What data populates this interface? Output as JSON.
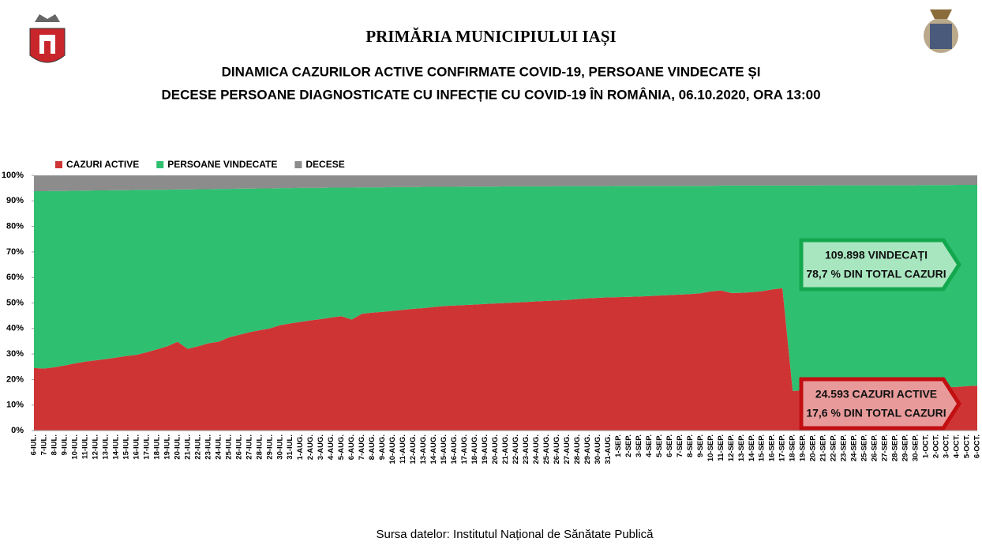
{
  "header": "PRIMĂRIA MUNICIPIULUI IAȘI",
  "source": "Sursa datelor: Institutul Național de Sănătate Publică",
  "chart_data": {
    "type": "stacked_area",
    "title_lines": [
      "DINAMICA CAZURILOR ACTIVE CONFIRMATE COVID-19, PERSOANE VINDECATE ȘI",
      "DECESE PERSOANE DIAGNOSTICATE CU INFECȚIE CU COVID-19 ÎN ROMÂNIA, 06.10.2020, ORA 13:00"
    ],
    "categories": [
      "6-IUL.",
      "7-IUL.",
      "8-IUL.",
      "9-IUL.",
      "10-IUL.",
      "11-IUL.",
      "12-IUL.",
      "13-IUL.",
      "14-IUL.",
      "15-IUL.",
      "16-IUL.",
      "17-IUL.",
      "18-IUL.",
      "19-IUL.",
      "20-IUL.",
      "21-IUL.",
      "22-IUL.",
      "23-IUL.",
      "24-IUL.",
      "25-IUL.",
      "26-IUL.",
      "27-IUL.",
      "28-IUL.",
      "29-IUL.",
      "30-IUL.",
      "31-IUL.",
      "1-AUG.",
      "2-AUG.",
      "3-AUG.",
      "4-AUG.",
      "5-AUG.",
      "6-AUG.",
      "7-AUG.",
      "8-AUG.",
      "9-AUG.",
      "10-AUG.",
      "11-AUG.",
      "12-AUG.",
      "13-AUG.",
      "14-AUG.",
      "15-AUG.",
      "16-AUG.",
      "17-AUG.",
      "18-AUG.",
      "19-AUG.",
      "20-AUG.",
      "21-AUG.",
      "22-AUG.",
      "23-AUG.",
      "24-AUG.",
      "25-AUG.",
      "26-AUG.",
      "27-AUG.",
      "28-AUG.",
      "29-AUG.",
      "30-AUG.",
      "31-AUG.",
      "1-SEP.",
      "2-SEP.",
      "3-SEP.",
      "4-SEP.",
      "5-SEP.",
      "6-SEP.",
      "7-SEP.",
      "8-SEP.",
      "9-SEP.",
      "10-SEP.",
      "11-SEP.",
      "12-SEP.",
      "13-SEP.",
      "14-SEP.",
      "15-SEP.",
      "16-SEP.",
      "17-SEP.",
      "18-SEP.",
      "19-SEP.",
      "20-SEP.",
      "21-SEP.",
      "22-SEP.",
      "23-SEP.",
      "24-SEP.",
      "25-SEP.",
      "26-SEP.",
      "27-SEP.",
      "28-SEP.",
      "29-SEP.",
      "30-SEP.",
      "1-OCT.",
      "2-OCT.",
      "3-OCT.",
      "4-OCT.",
      "5-OCT.",
      "6-OCT."
    ],
    "series": [
      {
        "name": "CAZURI ACTIVE",
        "color": "#cf3434",
        "values": [
          24.5,
          24.3,
          24.8,
          25.5,
          26.3,
          27.0,
          27.5,
          28.0,
          28.6,
          29.2,
          29.7,
          30.7,
          31.8,
          33.0,
          34.8,
          32.0,
          33.0,
          34.2,
          34.8,
          36.5,
          37.5,
          38.5,
          39.3,
          40.0,
          41.3,
          42.0,
          42.6,
          43.2,
          43.7,
          44.3,
          44.8,
          43.5,
          45.8,
          46.2,
          46.5,
          46.9,
          47.3,
          47.7,
          48.0,
          48.4,
          48.8,
          49.0,
          49.2,
          49.4,
          49.6,
          49.8,
          50.0,
          50.2,
          50.4,
          50.6,
          50.8,
          51.0,
          51.2,
          51.5,
          51.8,
          52.0,
          52.2,
          52.3,
          52.4,
          52.5,
          52.7,
          52.9,
          53.1,
          53.3,
          53.5,
          53.8,
          54.5,
          54.9,
          53.9,
          54.0,
          54.2,
          54.6,
          55.3,
          55.8,
          15.5,
          15.7,
          15.8,
          15.9,
          16.0,
          16.1,
          16.2,
          16.3,
          16.3,
          16.4,
          16.5,
          16.5,
          16.6,
          16.7,
          16.8,
          16.9,
          17.1,
          17.4,
          17.6
        ]
      },
      {
        "name": "PERSOANE VINDECATE",
        "color": "#2fbf71",
        "values": [
          69.3,
          69.5,
          69.1,
          68.4,
          67.7,
          67.0,
          66.6,
          66.1,
          65.6,
          65.0,
          64.6,
          63.6,
          62.6,
          61.4,
          59.7,
          62.5,
          61.6,
          60.4,
          59.9,
          58.2,
          57.3,
          56.3,
          55.6,
          54.9,
          53.7,
          53.0,
          52.5,
          51.9,
          51.4,
          50.9,
          50.4,
          51.7,
          49.5,
          49.1,
          48.8,
          48.5,
          48.1,
          47.7,
          47.5,
          47.1,
          46.7,
          46.5,
          46.4,
          46.2,
          46.0,
          45.8,
          45.7,
          45.5,
          45.3,
          45.1,
          44.9,
          44.8,
          44.6,
          44.3,
          44.0,
          43.8,
          43.6,
          43.6,
          43.5,
          43.4,
          43.2,
          43.0,
          42.8,
          42.6,
          42.4,
          42.1,
          41.4,
          41.1,
          42.1,
          42.0,
          41.8,
          41.4,
          40.7,
          40.2,
          80.5,
          80.3,
          80.2,
          80.2,
          80.1,
          80.0,
          79.9,
          79.8,
          79.8,
          79.7,
          79.6,
          79.6,
          79.5,
          79.5,
          79.4,
          79.3,
          79.2,
          78.9,
          78.7
        ]
      },
      {
        "name": "DECESE",
        "color": "#8c8c8c",
        "values": [
          6.2,
          6.2,
          6.1,
          6.1,
          6.0,
          6.0,
          5.9,
          5.9,
          5.8,
          5.8,
          5.7,
          5.7,
          5.6,
          5.6,
          5.5,
          5.5,
          5.4,
          5.4,
          5.3,
          5.3,
          5.2,
          5.2,
          5.1,
          5.1,
          5.0,
          5.0,
          4.9,
          4.9,
          4.9,
          4.8,
          4.8,
          4.8,
          4.7,
          4.7,
          4.7,
          4.6,
          4.6,
          4.6,
          4.5,
          4.5,
          4.5,
          4.5,
          4.4,
          4.4,
          4.4,
          4.4,
          4.3,
          4.3,
          4.3,
          4.3,
          4.3,
          4.2,
          4.2,
          4.2,
          4.2,
          4.2,
          4.2,
          4.1,
          4.1,
          4.1,
          4.1,
          4.1,
          4.1,
          4.1,
          4.1,
          4.1,
          4.1,
          4.0,
          4.0,
          4.0,
          4.0,
          4.0,
          4.0,
          4.0,
          4.0,
          4.0,
          4.0,
          3.9,
          3.9,
          3.9,
          3.9,
          3.9,
          3.9,
          3.9,
          3.9,
          3.9,
          3.9,
          3.8,
          3.8,
          3.8,
          3.7,
          3.7,
          3.7
        ]
      }
    ],
    "ylim": [
      0,
      100
    ],
    "yticks": [
      {
        "value": 0,
        "label": "0%"
      },
      {
        "value": 10,
        "label": "10%"
      },
      {
        "value": 20,
        "label": "20%"
      },
      {
        "value": 30,
        "label": "30%"
      },
      {
        "value": 40,
        "label": "40%"
      },
      {
        "value": 50,
        "label": "50%"
      },
      {
        "value": 60,
        "label": "60%"
      },
      {
        "value": 70,
        "label": "70%"
      },
      {
        "value": 80,
        "label": "80%"
      },
      {
        "value": 90,
        "label": "90%"
      },
      {
        "value": 100,
        "label": "100%"
      }
    ],
    "annotations": [
      [
        "109.898 VINDECAȚI",
        "78,7 % DIN TOTAL CAZURI"
      ],
      [
        "24.593 CAZURI ACTIVE",
        "17,6 % DIN TOTAL CAZURI"
      ]
    ]
  }
}
